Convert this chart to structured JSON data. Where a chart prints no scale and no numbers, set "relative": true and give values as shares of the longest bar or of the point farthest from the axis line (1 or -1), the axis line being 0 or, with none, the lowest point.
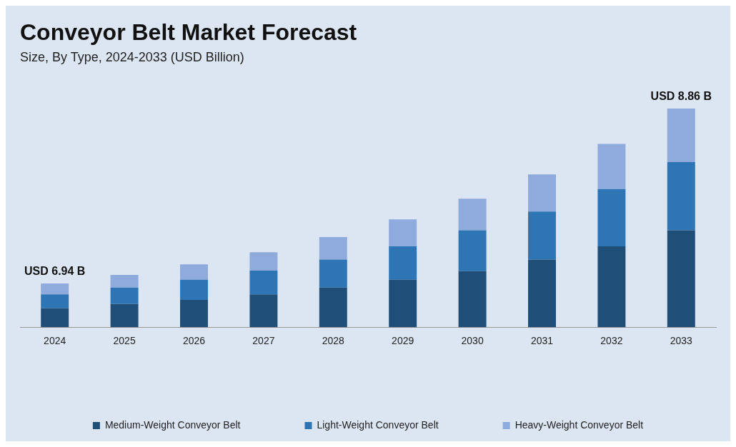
{
  "chart_data": {
    "type": "bar",
    "title": "Conveyor Belt Market Forecast",
    "subtitle": "Size, By Type, 2024-2033 (USD Billion)",
    "categories": [
      "2024",
      "2025",
      "2026",
      "2027",
      "2028",
      "2029",
      "2030",
      "2031",
      "2032",
      "2033"
    ],
    "stacked": true,
    "relative": true,
    "legend": "bottom",
    "grid": false,
    "series": [
      {
        "name": "Medium-Weight Conveyor Belt",
        "color": "#1f4e79",
        "values": [
          0.086,
          0.106,
          0.125,
          0.15,
          0.181,
          0.217,
          0.256,
          0.309,
          0.37,
          0.443
        ]
      },
      {
        "name": "Light-Weight Conveyor Belt",
        "color": "#2e75b6",
        "values": [
          0.064,
          0.075,
          0.092,
          0.109,
          0.128,
          0.153,
          0.187,
          0.22,
          0.262,
          0.312
        ]
      },
      {
        "name": "Heavy-Weight Conveyor Belt",
        "color": "#8faadc",
        "values": [
          0.05,
          0.058,
          0.07,
          0.084,
          0.103,
          0.123,
          0.145,
          0.17,
          0.206,
          0.245
        ]
      }
    ],
    "totals": [
      "USD 6.94 B",
      null,
      null,
      null,
      null,
      null,
      null,
      null,
      null,
      "USD 8.86 B"
    ]
  }
}
